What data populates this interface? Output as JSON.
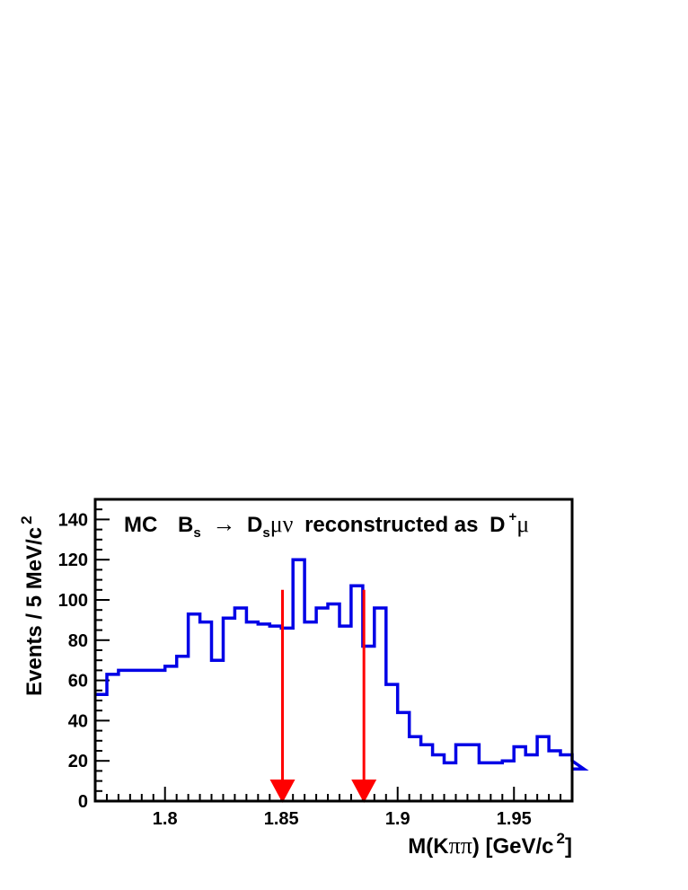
{
  "chart_data": {
    "type": "histogram-step",
    "title": {
      "prefix": "MC",
      "text_parts": [
        "B",
        "s",
        "→",
        "D",
        "s",
        "μν",
        "reconstructed as",
        "D",
        "+",
        "μ"
      ]
    },
    "xlabel": {
      "text_parts": [
        "M(K",
        "ππ",
        ") [GeV/c",
        "2",
        "]"
      ]
    },
    "ylabel": {
      "text_parts": [
        "Events / 5 MeV/c",
        "2"
      ]
    },
    "xlim": [
      1.77,
      1.975
    ],
    "ylim": [
      0,
      150
    ],
    "x_ticks": [
      1.8,
      1.85,
      1.9,
      1.95
    ],
    "x_tick_labels": [
      "1.8",
      "1.85",
      "1.9",
      "1.95"
    ],
    "y_ticks": [
      0,
      20,
      40,
      60,
      80,
      100,
      120,
      140
    ],
    "y_tick_labels": [
      "0",
      "20",
      "40",
      "60",
      "80",
      "100",
      "120",
      "140"
    ],
    "bin_width": 0.005,
    "bin_start": 1.77,
    "values": [
      53,
      63,
      65,
      65,
      65,
      65,
      67,
      72,
      93,
      89,
      70,
      91,
      96,
      89,
      88,
      87,
      86,
      120,
      89,
      96,
      98,
      87,
      107,
      77,
      96,
      58,
      44,
      32,
      28,
      23,
      19,
      28,
      28,
      19,
      19,
      20,
      27,
      23,
      32,
      25,
      23,
      20,
      16
    ],
    "line_color": "#0000e6",
    "arrows": [
      {
        "x": 1.8505,
        "y_top": 105
      },
      {
        "x": 1.8855,
        "y_top": 105
      }
    ],
    "arrow_color": "#ff0000",
    "grid": false
  }
}
